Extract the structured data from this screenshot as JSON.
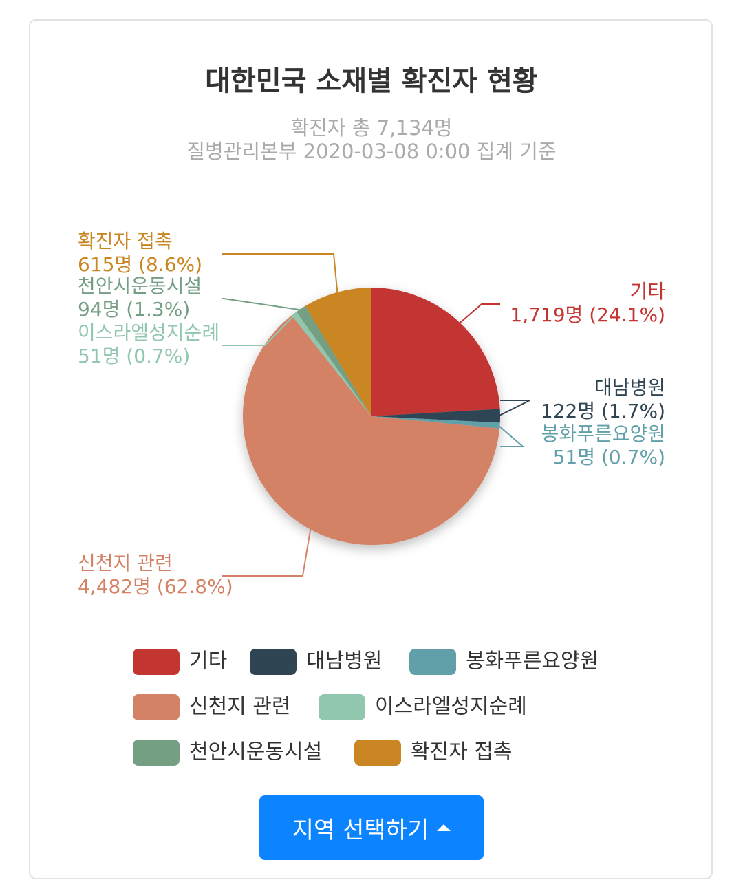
{
  "chart_data": {
    "type": "pie",
    "title": "대한민국 소재별 확진자 현황",
    "subtitle": [
      "확진자 총 7,134명",
      "질병관리본부 2020-03-08 0:00 집계 기준"
    ],
    "categories": [
      "기타",
      "대남병원",
      "봉화푸른요양원",
      "신천지 관련",
      "이스라엘성지순례",
      "천안시운동시설",
      "확진자 접촉"
    ],
    "values": [
      1719,
      122,
      51,
      4482,
      51,
      94,
      615
    ],
    "value_labels": [
      "1,719명 (24.1%)",
      "122명 (1.7%)",
      "51명 (0.7%)",
      "4,482명 (62.8%)",
      "51명 (0.7%)",
      "94명 (1.3%)",
      "615명 (8.6%)"
    ],
    "colors": [
      "#c23531",
      "#2f4554",
      "#61a0a8",
      "#d48265",
      "#91c7ae",
      "#749f83",
      "#ca8622"
    ],
    "button": "지역 선택하기"
  }
}
